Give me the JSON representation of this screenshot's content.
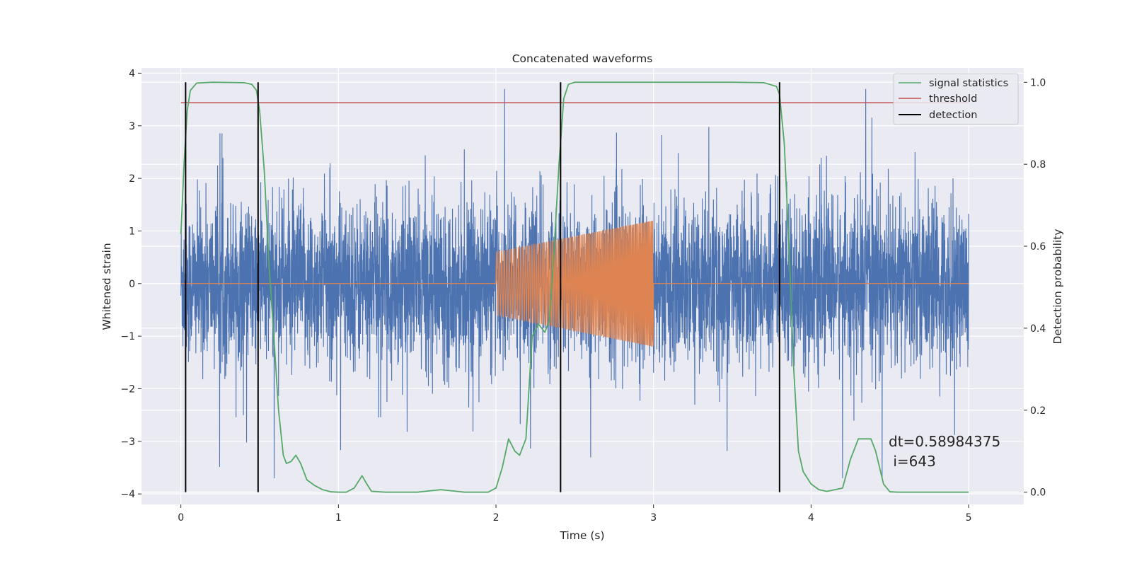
{
  "chart_data": {
    "type": "line",
    "title": "Concatenated waveforms",
    "xlabel": "Time (s)",
    "ylabel": "Whitened strain",
    "y2label": "Detection probability",
    "xlim": [
      -0.25,
      5.35
    ],
    "ylim": [
      -4.2,
      4.1
    ],
    "y2lim": [
      -0.03,
      1.035
    ],
    "x_ticks": [
      0,
      1,
      2,
      3,
      4,
      5
    ],
    "y_ticks": [
      -4,
      -3,
      -2,
      -1,
      0,
      1,
      2,
      3,
      4
    ],
    "y2_ticks": [
      0.0,
      0.2,
      0.4,
      0.6,
      0.8,
      1.0
    ],
    "x_tick_labels": [
      "0",
      "1",
      "2",
      "3",
      "4",
      "5"
    ],
    "y_tick_labels": [
      "−4",
      "−3",
      "−2",
      "−1",
      "0",
      "1",
      "2",
      "3",
      "4"
    ],
    "y2_tick_labels": [
      "0.0",
      "0.2",
      "0.4",
      "0.6",
      "0.8",
      "1.0"
    ],
    "grid": true,
    "legend_placement": "top-right",
    "annotation": {
      "line1": "dt=0.58984375",
      "line2": " i=643",
      "x": 4.5,
      "y_prob": 0.1
    },
    "series": [
      {
        "name": "",
        "axis": "left",
        "color": "#4c72b0",
        "kind": "noise",
        "x_range": [
          0,
          5
        ],
        "envelope_typical": 2.0,
        "envelope_peak": 3.7
      },
      {
        "name": "",
        "axis": "left",
        "color": "#dd8452",
        "kind": "chirp",
        "x_range": [
          2.0,
          3.0
        ],
        "amplitude_start": 0.6,
        "amplitude_end": 1.2,
        "baseline": 0
      },
      {
        "name": "signal statistics",
        "axis": "right",
        "color": "#55a868",
        "points": [
          [
            0.0,
            0.63
          ],
          [
            0.02,
            0.8
          ],
          [
            0.04,
            0.93
          ],
          [
            0.06,
            0.98
          ],
          [
            0.1,
            0.998
          ],
          [
            0.2,
            1.0
          ],
          [
            0.4,
            0.999
          ],
          [
            0.45,
            0.995
          ],
          [
            0.48,
            0.98
          ],
          [
            0.5,
            0.93
          ],
          [
            0.53,
            0.78
          ],
          [
            0.56,
            0.55
          ],
          [
            0.59,
            0.38
          ],
          [
            0.62,
            0.2
          ],
          [
            0.65,
            0.09
          ],
          [
            0.67,
            0.07
          ],
          [
            0.7,
            0.075
          ],
          [
            0.73,
            0.09
          ],
          [
            0.76,
            0.07
          ],
          [
            0.8,
            0.03
          ],
          [
            0.85,
            0.016
          ],
          [
            0.9,
            0.006
          ],
          [
            0.95,
            0.001
          ],
          [
            1.0,
            0.0
          ],
          [
            1.05,
            0.0
          ],
          [
            1.1,
            0.01
          ],
          [
            1.15,
            0.04
          ],
          [
            1.18,
            0.02
          ],
          [
            1.21,
            0.002
          ],
          [
            1.3,
            0.0
          ],
          [
            1.5,
            0.0
          ],
          [
            1.65,
            0.006
          ],
          [
            1.8,
            0.0
          ],
          [
            1.95,
            0.0
          ],
          [
            2.0,
            0.01
          ],
          [
            2.04,
            0.06
          ],
          [
            2.08,
            0.13
          ],
          [
            2.12,
            0.1
          ],
          [
            2.15,
            0.09
          ],
          [
            2.19,
            0.13
          ],
          [
            2.23,
            0.38
          ],
          [
            2.27,
            0.41
          ],
          [
            2.31,
            0.39
          ],
          [
            2.34,
            0.42
          ],
          [
            2.37,
            0.6
          ],
          [
            2.4,
            0.8
          ],
          [
            2.43,
            0.96
          ],
          [
            2.46,
            0.995
          ],
          [
            2.5,
            1.0
          ],
          [
            3.5,
            1.0
          ],
          [
            3.7,
            0.999
          ],
          [
            3.78,
            0.99
          ],
          [
            3.8,
            0.97
          ],
          [
            3.83,
            0.85
          ],
          [
            3.86,
            0.6
          ],
          [
            3.89,
            0.3
          ],
          [
            3.92,
            0.1
          ],
          [
            3.95,
            0.05
          ],
          [
            4.0,
            0.02
          ],
          [
            4.05,
            0.006
          ],
          [
            4.1,
            0.002
          ],
          [
            4.2,
            0.01
          ],
          [
            4.25,
            0.08
          ],
          [
            4.3,
            0.13
          ],
          [
            4.38,
            0.13
          ],
          [
            4.41,
            0.1
          ],
          [
            4.46,
            0.02
          ],
          [
            4.5,
            0.001
          ],
          [
            4.55,
            0.0
          ],
          [
            5.0,
            0.0
          ]
        ]
      },
      {
        "name": "threshold",
        "axis": "right",
        "color": "#c44e52",
        "value": 0.95,
        "x_range": [
          0,
          5
        ]
      },
      {
        "name": "detection",
        "axis": "right",
        "color": "#000000",
        "kind": "vlines",
        "x": [
          0.03,
          0.49,
          2.41,
          3.8
        ],
        "y_range": [
          0.0,
          1.0
        ]
      }
    ]
  }
}
